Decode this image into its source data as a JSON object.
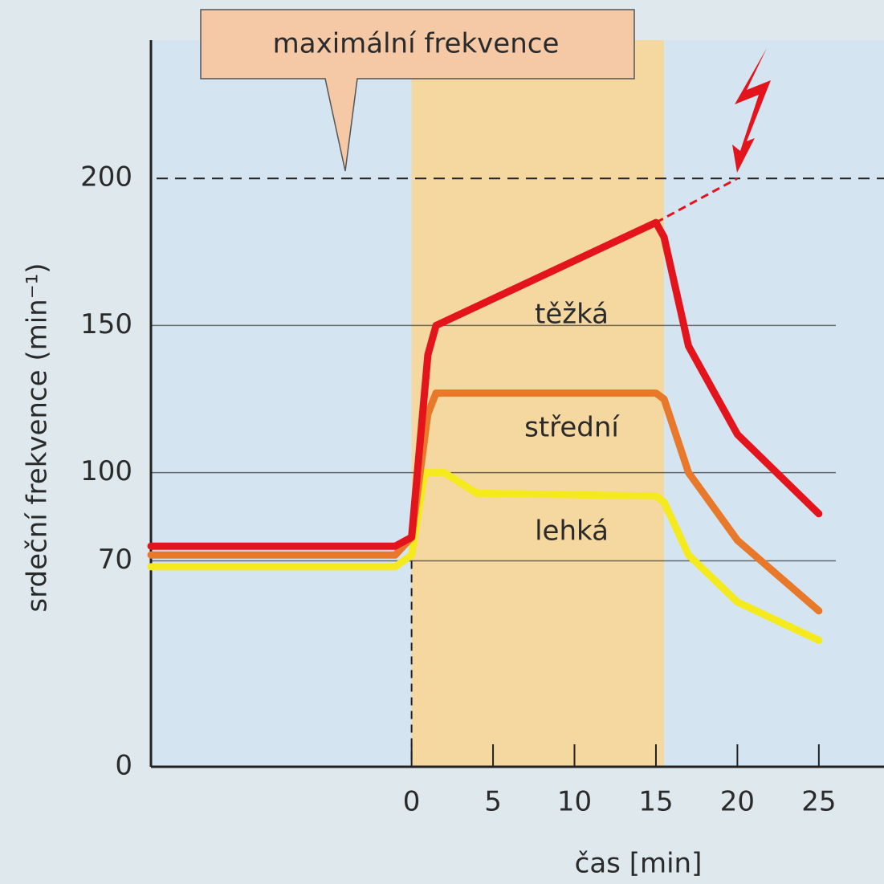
{
  "chart_data": {
    "type": "line",
    "xlabel": "čas [min]",
    "ylabel": "srdeční frekvence (min⁻¹)",
    "annotation": "maximální frekvence",
    "max_line": 200,
    "exercise_span": [
      0,
      15.5
    ],
    "xlim": [
      -16,
      29
    ],
    "ylim": [
      0,
      247
    ],
    "xticks": [
      0,
      5,
      10,
      15,
      20,
      25
    ],
    "yticks": [
      0,
      70,
      100,
      150,
      200
    ],
    "series": [
      {
        "name": "těžká",
        "color": "#e3141b",
        "x": [
          -16,
          -1,
          0,
          1,
          1.5,
          15,
          15.5,
          17,
          20,
          25
        ],
        "values": [
          75,
          75,
          78,
          140,
          150,
          185,
          180,
          143,
          113,
          86
        ]
      },
      {
        "name": "střední",
        "color": "#e8782a",
        "x": [
          -16,
          -1,
          0,
          1,
          1.5,
          15,
          15.5,
          17,
          20,
          25
        ],
        "values": [
          72,
          72,
          78,
          120,
          127,
          127,
          125,
          100,
          77,
          53
        ]
      },
      {
        "name": "lehká",
        "color": "#f5ea1e",
        "x": [
          -16,
          -1,
          0,
          0.8,
          2,
          4,
          15,
          15.5,
          17,
          20,
          25
        ],
        "values": [
          68,
          68,
          72,
          100,
          100,
          93,
          92,
          90,
          72,
          56,
          43
        ]
      }
    ],
    "dashed_extension": {
      "x": [
        15,
        20
      ],
      "values": [
        185,
        200
      ]
    }
  }
}
